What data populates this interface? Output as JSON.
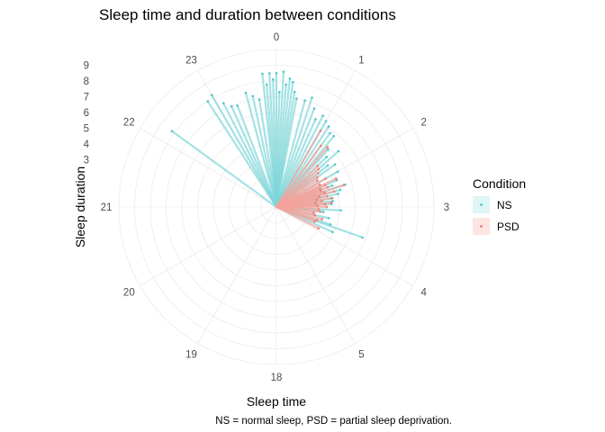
{
  "chart_data": {
    "type": "polar-segment",
    "title": "Sleep time and duration between conditions",
    "xlabel": "Sleep time",
    "ylabel": "Sleep duration",
    "caption": "NS = normal sleep, PSD = partial sleep deprivation.",
    "angular_axis": {
      "labels": [
        "0",
        "1",
        "2",
        "3",
        "4",
        "5",
        "18",
        "19",
        "20",
        "21",
        "22",
        "23"
      ],
      "hours": [
        0,
        1,
        2,
        3,
        4,
        5,
        18,
        19,
        20,
        21,
        22,
        23
      ],
      "range_hours": [
        18,
        6
      ]
    },
    "radial_axis": {
      "ticks": [
        "3",
        "4",
        "5",
        "6",
        "7",
        "8",
        "9"
      ],
      "tick_values": [
        3,
        4,
        5,
        6,
        7,
        8,
        9
      ],
      "range": [
        0,
        10
      ]
    },
    "legend": {
      "title": "Condition",
      "position": "right",
      "entries": [
        {
          "label": "NS",
          "color": "#7fd6d9"
        },
        {
          "label": "PSD",
          "color": "#f4a39b"
        }
      ]
    },
    "series": [
      {
        "name": "NS",
        "color": "#7fd6d9",
        "points": [
          [
            22.2,
            8.2
          ],
          [
            22.9,
            8.0
          ],
          [
            23.0,
            8.2
          ],
          [
            23.1,
            7.4
          ],
          [
            23.2,
            7.0
          ],
          [
            23.3,
            6.9
          ],
          [
            23.5,
            7.5
          ],
          [
            23.6,
            7.2
          ],
          [
            23.7,
            6.9
          ],
          [
            23.8,
            8.5
          ],
          [
            23.85,
            7.8
          ],
          [
            23.9,
            8.5
          ],
          [
            23.95,
            8.1
          ],
          [
            0.0,
            8.5
          ],
          [
            0.05,
            7.3
          ],
          [
            0.1,
            8.6
          ],
          [
            0.15,
            7.8
          ],
          [
            0.2,
            8.2
          ],
          [
            0.25,
            8.0
          ],
          [
            0.3,
            7.4
          ],
          [
            0.35,
            7.0
          ],
          [
            0.5,
            7.0
          ],
          [
            0.6,
            7.3
          ],
          [
            0.7,
            6.7
          ],
          [
            0.8,
            6.1
          ],
          [
            0.9,
            6.5
          ],
          [
            1.0,
            6.3
          ],
          [
            1.1,
            6.1
          ],
          [
            1.2,
            5.8
          ],
          [
            1.3,
            5.8
          ],
          [
            1.4,
            4.9
          ],
          [
            1.5,
            4.5
          ],
          [
            1.6,
            5.3
          ],
          [
            1.7,
            4.2
          ],
          [
            1.8,
            4.6
          ],
          [
            2.0,
            4.5
          ],
          [
            2.2,
            4.2
          ],
          [
            2.3,
            3.8
          ],
          [
            2.4,
            4.6
          ],
          [
            2.5,
            4.2
          ],
          [
            2.6,
            4.0
          ],
          [
            2.7,
            3.5
          ],
          [
            2.8,
            3.6
          ],
          [
            2.9,
            3.5
          ],
          [
            3.1,
            4.1
          ],
          [
            3.2,
            3.0
          ],
          [
            3.4,
            3.4
          ],
          [
            3.6,
            3.6
          ],
          [
            3.8,
            3.9
          ],
          [
            3.65,
            5.8
          ]
        ]
      },
      {
        "name": "PSD",
        "color": "#f4a39b",
        "points": [
          [
            1.0,
            5.6
          ],
          [
            1.2,
            4.8
          ],
          [
            1.35,
            5.0
          ],
          [
            1.5,
            3.7
          ],
          [
            1.6,
            3.6
          ],
          [
            1.7,
            3.4
          ],
          [
            1.8,
            3.2
          ],
          [
            1.9,
            3.1
          ],
          [
            2.0,
            3.6
          ],
          [
            2.1,
            3.1
          ],
          [
            2.15,
            4.2
          ],
          [
            2.2,
            3.4
          ],
          [
            2.25,
            3.0
          ],
          [
            2.3,
            3.5
          ],
          [
            2.35,
            3.0
          ],
          [
            2.4,
            4.5
          ],
          [
            2.45,
            3.2
          ],
          [
            2.5,
            3.8
          ],
          [
            2.55,
            2.8
          ],
          [
            2.6,
            3.3
          ],
          [
            2.65,
            2.6
          ],
          [
            2.7,
            3.6
          ],
          [
            2.75,
            2.9
          ],
          [
            2.8,
            2.5
          ],
          [
            2.85,
            3.5
          ],
          [
            2.9,
            3.1
          ],
          [
            2.95,
            2.6
          ],
          [
            3.0,
            3.2
          ],
          [
            3.1,
            2.7
          ],
          [
            3.2,
            2.8
          ],
          [
            3.3,
            2.4
          ],
          [
            3.4,
            2.5
          ],
          [
            3.5,
            3.0
          ],
          [
            3.6,
            2.7
          ],
          [
            3.7,
            2.6
          ],
          [
            3.9,
            3.0
          ]
        ]
      }
    ]
  }
}
